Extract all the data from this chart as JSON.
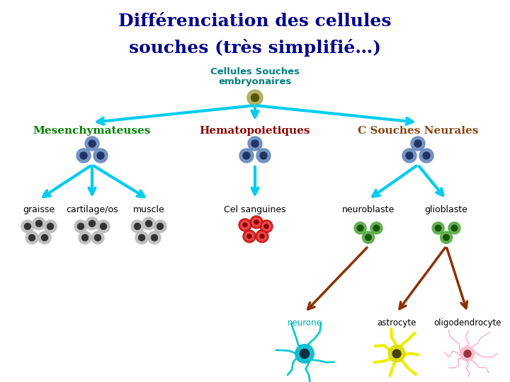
{
  "title_line1": "Différenciation des cellules",
  "title_line2": "souches (très simplifié…)",
  "title_color": "#00008B",
  "title_fontsize": 18,
  "root_label_line1": "Cellules Souches",
  "root_label_line2": "embryonaires",
  "root_label_color": "#008080",
  "root_label_fontsize": 9.5,
  "level1_labels": [
    "Mesenchymateuses",
    "Hematopoietiques",
    "C Souches Neurales"
  ],
  "level1_colors": [
    "#008000",
    "#8B0000",
    "#8B4513"
  ],
  "level1_fontsize": 11,
  "level2_labels_mesen": [
    "graisse",
    "cartilage/os",
    "muscle"
  ],
  "level2_labels_hemato": [
    "Cel sanguines"
  ],
  "level2_labels_neural": [
    "neuroblaste",
    "glioblaste"
  ],
  "level3_labels_neural": [
    "neurone",
    "astrocyte",
    "oligodendrocyte"
  ],
  "level3_label_color": "#00AAAA",
  "arrow_color": "#00CCEE",
  "arrow_color2": "#8B3000",
  "bg_color": "#FFFFFF"
}
